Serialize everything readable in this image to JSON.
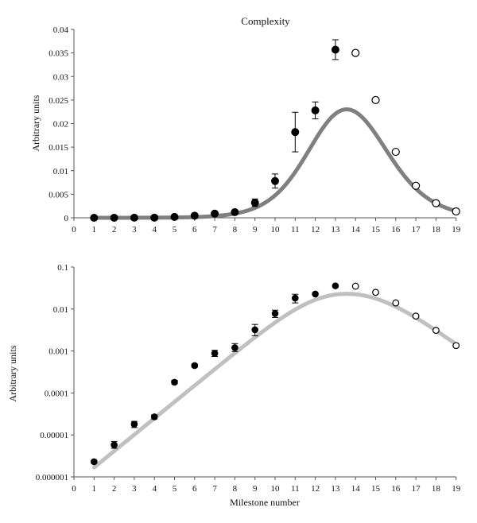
{
  "chart_data": [
    {
      "type": "scatter",
      "title": "Complexity",
      "xlabel": "",
      "ylabel": "Arbitrary units",
      "xlim": [
        0,
        19
      ],
      "ylim": [
        0,
        0.04
      ],
      "yscale": "linear",
      "grid": false,
      "x_ticks": [
        "0",
        "1",
        "2",
        "3",
        "4",
        "5",
        "6",
        "7",
        "8",
        "9",
        "10",
        "11",
        "12",
        "13",
        "14",
        "15",
        "16",
        "17",
        "18",
        "19"
      ],
      "y_ticks": [
        {
          "value": 0,
          "label": "0"
        },
        {
          "value": 0.005,
          "label": "0.005"
        },
        {
          "value": 0.01,
          "label": "0.01"
        },
        {
          "value": 0.015,
          "label": "0.015"
        },
        {
          "value": 0.02,
          "label": "0.02"
        },
        {
          "value": 0.025,
          "label": "0.025"
        },
        {
          "value": 0.03,
          "label": "0.03"
        },
        {
          "value": 0.035,
          "label": "0.035"
        },
        {
          "value": 0.04,
          "label": "0.04"
        }
      ],
      "curve_color": "#808080",
      "observed": {
        "marker": "filled",
        "color": "#000000",
        "points": [
          {
            "x": 1,
            "y": 2.3e-06
          },
          {
            "x": 2,
            "y": 5.8e-06
          },
          {
            "x": 3,
            "y": 1.8e-05
          },
          {
            "x": 4,
            "y": 2.7e-05
          },
          {
            "x": 5,
            "y": 0.00018
          },
          {
            "x": 6,
            "y": 0.00045
          },
          {
            "x": 7,
            "y": 0.00088
          },
          {
            "x": 8,
            "y": 0.0012,
            "err": 0.00025
          },
          {
            "x": 9,
            "y": 0.0032,
            "err": 0.0008
          },
          {
            "x": 10,
            "y": 0.0078,
            "err": 0.0015
          },
          {
            "x": 11,
            "y": 0.0182,
            "err": 0.0042
          },
          {
            "x": 12,
            "y": 0.0228,
            "err": 0.0018
          },
          {
            "x": 13,
            "y": 0.0357,
            "err": 0.0021
          }
        ]
      },
      "projected": {
        "marker": "open",
        "points": [
          {
            "x": 14,
            "y": 0.035
          },
          {
            "x": 15,
            "y": 0.025
          },
          {
            "x": 16,
            "y": 0.014
          },
          {
            "x": 17,
            "y": 0.0068
          },
          {
            "x": 18,
            "y": 0.0031
          },
          {
            "x": 19,
            "y": 0.00135
          }
        ]
      }
    },
    {
      "type": "scatter",
      "title": "",
      "xlabel": "Milestone number",
      "ylabel": "Arbitrary units",
      "xlim": [
        0,
        19
      ],
      "ylim": [
        1e-06,
        0.1
      ],
      "yscale": "log",
      "grid": false,
      "x_ticks": [
        "0",
        "1",
        "2",
        "3",
        "4",
        "5",
        "6",
        "7",
        "8",
        "9",
        "10",
        "11",
        "12",
        "13",
        "14",
        "15",
        "16",
        "17",
        "18",
        "19"
      ],
      "y_ticks": [
        {
          "value": 0.1,
          "label": "0.1"
        },
        {
          "value": 0.01,
          "label": "0.01"
        },
        {
          "value": 0.001,
          "label": "0.001"
        },
        {
          "value": 0.0001,
          "label": "0.0001"
        },
        {
          "value": 1e-05,
          "label": "0.00001"
        },
        {
          "value": 1e-06,
          "label": "0.000001"
        }
      ],
      "curve_color": "#c0c0c0",
      "observed": {
        "marker": "filled",
        "color": "#000000",
        "points": [
          {
            "x": 1,
            "y": 2.3e-06,
            "lo": 2.1e-06,
            "hi": 2.5e-06
          },
          {
            "x": 2,
            "y": 5.8e-06,
            "lo": 4.8e-06,
            "hi": 7e-06
          },
          {
            "x": 3,
            "y": 1.8e-05,
            "lo": 1.5e-05,
            "hi": 2.1e-05
          },
          {
            "x": 4,
            "y": 2.7e-05,
            "lo": 2.4e-05,
            "hi": 3e-05
          },
          {
            "x": 5,
            "y": 0.00018,
            "lo": 0.000165,
            "hi": 0.0002
          },
          {
            "x": 6,
            "y": 0.00045,
            "lo": 0.00041,
            "hi": 0.00049
          },
          {
            "x": 7,
            "y": 0.00088,
            "lo": 0.00074,
            "hi": 0.00104
          },
          {
            "x": 8,
            "y": 0.0012,
            "lo": 0.00097,
            "hi": 0.0015
          },
          {
            "x": 9,
            "y": 0.0032,
            "lo": 0.0023,
            "hi": 0.0043
          },
          {
            "x": 10,
            "y": 0.0078,
            "lo": 0.0063,
            "hi": 0.0094
          },
          {
            "x": 11,
            "y": 0.0182,
            "lo": 0.014,
            "hi": 0.0225
          },
          {
            "x": 12,
            "y": 0.0228
          },
          {
            "x": 13,
            "y": 0.0357
          }
        ]
      },
      "projected": {
        "marker": "open",
        "points": [
          {
            "x": 14,
            "y": 0.035
          },
          {
            "x": 15,
            "y": 0.025
          },
          {
            "x": 16,
            "y": 0.014
          },
          {
            "x": 17,
            "y": 0.0068
          },
          {
            "x": 18,
            "y": 0.0031
          },
          {
            "x": 19,
            "y": 0.00135
          }
        ]
      }
    }
  ]
}
